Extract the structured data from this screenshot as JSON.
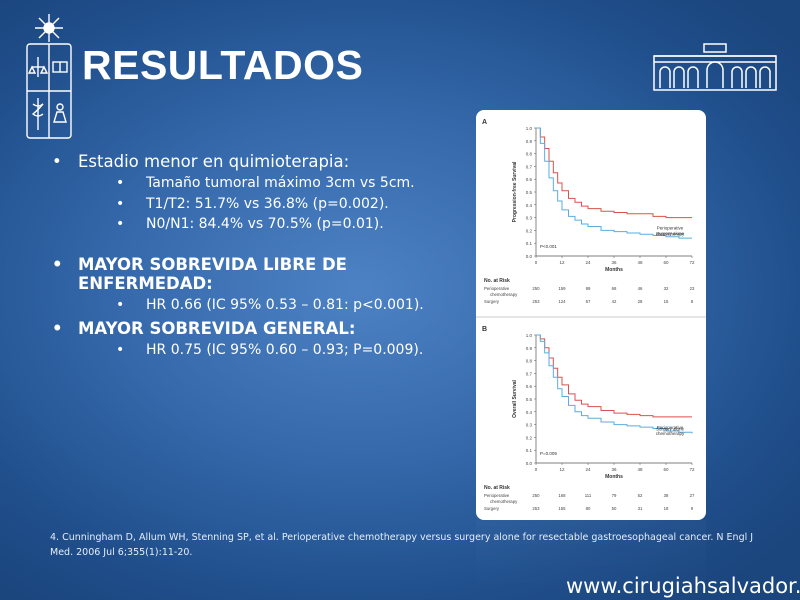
{
  "slide": {
    "title": "RESULTADOS",
    "bullets": [
      {
        "text": "Estadio menor en quimioterapia:",
        "bold": false,
        "sub": [
          "Tamaño tumoral máximo 3cm vs 5cm.",
          "T1/T2: 51.7% vs 36.8% (p=0.002).",
          "N0/N1: 84.4% vs 70.5% (p=0.01)."
        ]
      },
      {
        "text": "MAYOR SOBREVIDA LIBRE DE ENFERMEDAD:",
        "bold": true,
        "sub": [
          "HR 0.66 (IC 95% 0.53 – 0.81: p<0.001)."
        ]
      },
      {
        "text": "MAYOR SOBREVIDA GENERAL:",
        "bold": true,
        "sub": [
          "HR 0.75 (IC 95% 0.60 – 0.93; P=0.009)."
        ]
      }
    ],
    "citation": "4. Cunningham D, Allum WH, Stenning SP, et al. Perioperative chemotherapy versus surgery alone for resectable gastroesophageal cancer. N Engl J Med. 2006 Jul 6;355(1):11-20.",
    "website": "www.cirugiahsalvador.cl"
  },
  "chart_data": [
    {
      "type": "line",
      "panel_label": "A",
      "ylabel": "Progression-free Survival",
      "xlabel": "Months",
      "xlim": [
        0,
        72
      ],
      "ylim": [
        0,
        1.0
      ],
      "x_ticks": [
        0,
        12,
        24,
        36,
        48,
        60,
        72
      ],
      "y_ticks": [
        "0.0",
        "0.1",
        "0.2",
        "0.3",
        "0.4",
        "0.5",
        "0.6",
        "0.7",
        "0.8",
        "0.9",
        "1.0"
      ],
      "series": [
        {
          "name": "Perioperative chemotherapy",
          "color": "#d9534a",
          "x": [
            0,
            2,
            4,
            6,
            8,
            10,
            12,
            15,
            18,
            21,
            24,
            30,
            36,
            42,
            48,
            54,
            60,
            66,
            72
          ],
          "y": [
            1.0,
            0.93,
            0.84,
            0.74,
            0.65,
            0.57,
            0.51,
            0.45,
            0.42,
            0.39,
            0.37,
            0.35,
            0.34,
            0.33,
            0.33,
            0.31,
            0.3,
            0.3,
            0.3
          ]
        },
        {
          "name": "Surgery alone",
          "color": "#5aaee0",
          "x": [
            0,
            2,
            4,
            6,
            8,
            10,
            12,
            15,
            18,
            21,
            24,
            30,
            36,
            42,
            48,
            54,
            60,
            66,
            72
          ],
          "y": [
            1.0,
            0.88,
            0.74,
            0.61,
            0.51,
            0.43,
            0.36,
            0.31,
            0.28,
            0.25,
            0.23,
            0.2,
            0.19,
            0.18,
            0.17,
            0.16,
            0.15,
            0.14,
            0.14
          ]
        }
      ],
      "annotation": "P<0.001",
      "risk_table": {
        "heading": "No. at Risk",
        "rows": [
          {
            "label": "Perioperative chemotherapy",
            "values": [
              "250",
              "159",
              "99",
              "68",
              "46",
              "32",
              "23"
            ]
          },
          {
            "label": "Surgery",
            "values": [
              "253",
              "124",
              "57",
              "42",
              "28",
              "15",
              "8"
            ]
          }
        ]
      }
    },
    {
      "type": "line",
      "panel_label": "B",
      "ylabel": "Overall Survival",
      "xlabel": "Months",
      "xlim": [
        0,
        72
      ],
      "ylim": [
        0,
        1.0
      ],
      "x_ticks": [
        0,
        12,
        24,
        36,
        48,
        60,
        72
      ],
      "y_ticks": [
        "0.0",
        "0.1",
        "0.2",
        "0.3",
        "0.4",
        "0.5",
        "0.6",
        "0.7",
        "0.8",
        "0.9",
        "1.0"
      ],
      "series": [
        {
          "name": "Perioperative chemotherapy",
          "color": "#d9534a",
          "x": [
            0,
            2,
            4,
            6,
            8,
            10,
            12,
            15,
            18,
            21,
            24,
            30,
            36,
            42,
            48,
            54,
            60,
            66,
            72
          ],
          "y": [
            1.0,
            0.97,
            0.9,
            0.82,
            0.74,
            0.67,
            0.61,
            0.54,
            0.49,
            0.46,
            0.44,
            0.41,
            0.39,
            0.38,
            0.37,
            0.36,
            0.36,
            0.36,
            0.36
          ]
        },
        {
          "name": "Surgery alone",
          "color": "#5aaee0",
          "x": [
            0,
            2,
            4,
            6,
            8,
            10,
            12,
            15,
            18,
            21,
            24,
            30,
            36,
            42,
            48,
            54,
            60,
            66,
            72
          ],
          "y": [
            1.0,
            0.95,
            0.86,
            0.76,
            0.67,
            0.58,
            0.52,
            0.45,
            0.4,
            0.37,
            0.35,
            0.32,
            0.3,
            0.29,
            0.28,
            0.27,
            0.25,
            0.24,
            0.23
          ]
        }
      ],
      "annotation": "P=0.009",
      "risk_table": {
        "heading": "No. at Risk",
        "rows": [
          {
            "label": "Perioperative chemotherapy",
            "values": [
              "250",
              "168",
              "111",
              "79",
              "52",
              "38",
              "27"
            ]
          },
          {
            "label": "Surgery",
            "values": [
              "253",
              "155",
              "80",
              "50",
              "31",
              "18",
              "9"
            ]
          }
        ]
      }
    }
  ]
}
